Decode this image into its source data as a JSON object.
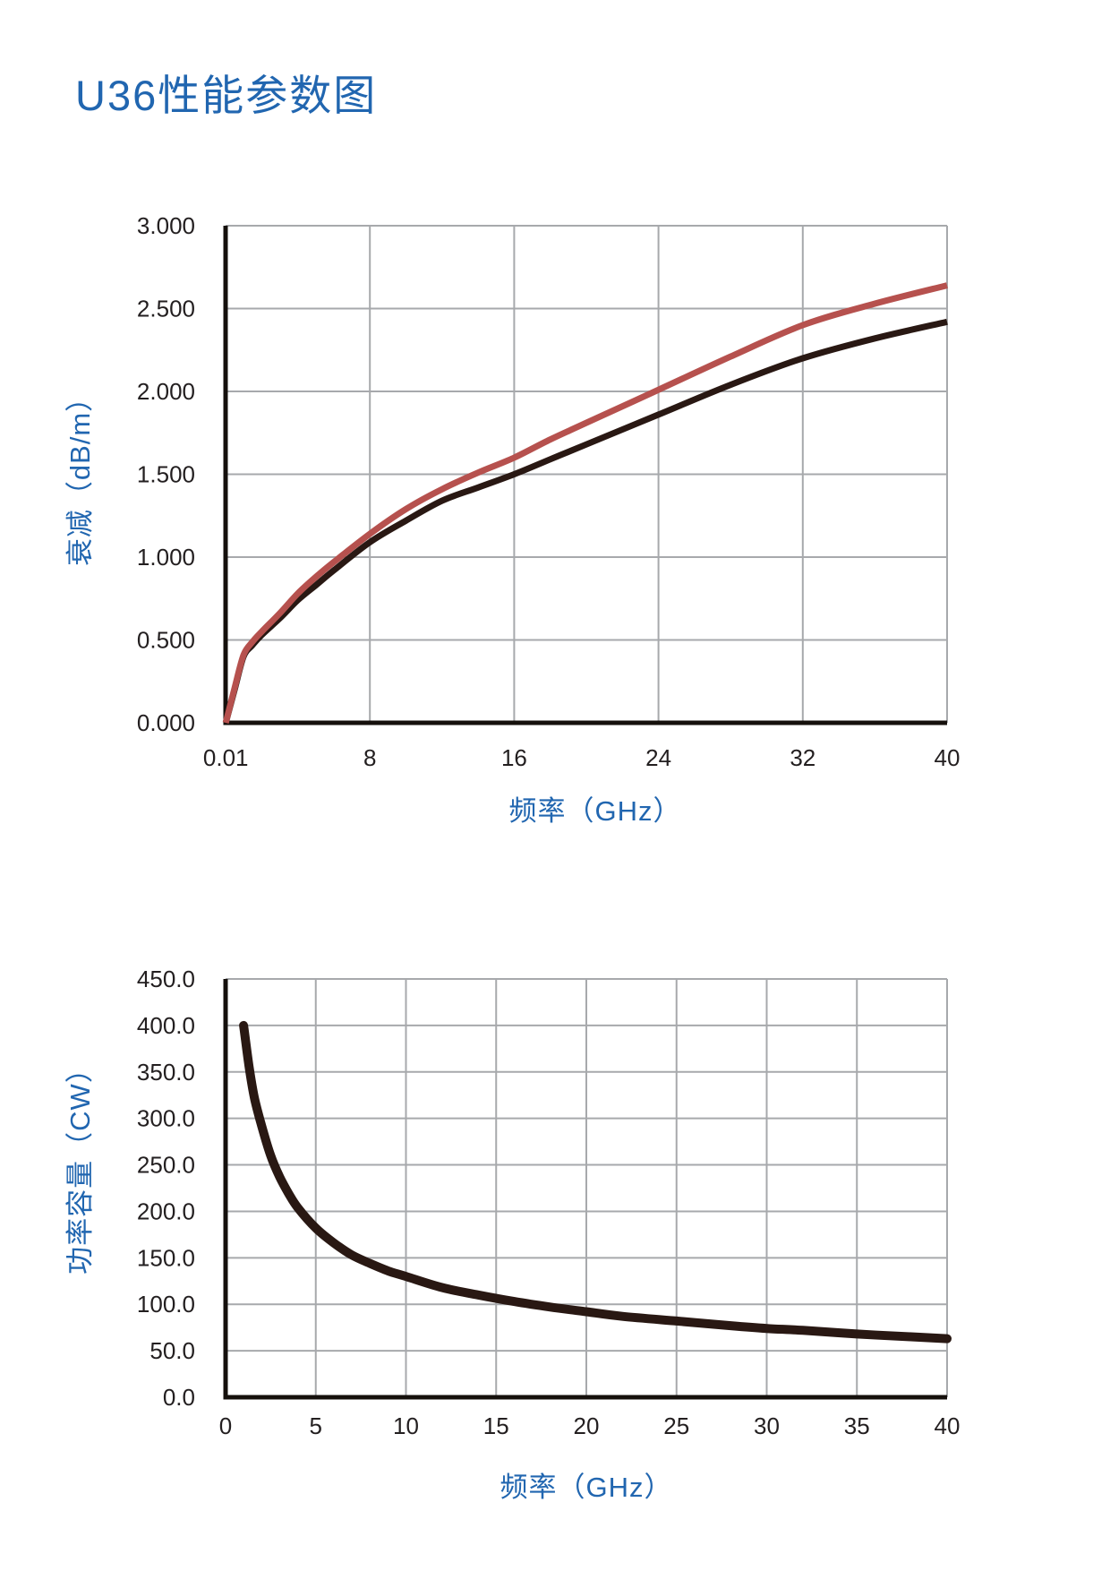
{
  "page": {
    "title": "U36性能参数图",
    "accent_blue": "#2166b0",
    "tick_color": "#231f20",
    "grid_color": "#a7a9ac",
    "axis_color": "#15100c"
  },
  "chart_data": [
    {
      "type": "line",
      "title": "",
      "xlabel": "频率（GHz）",
      "ylabel": "衰减（dB/m）",
      "xlim": [
        0,
        40
      ],
      "ylim": [
        0,
        3
      ],
      "grid": true,
      "legend": "none",
      "x_ticks": {
        "values": [
          0.01,
          8,
          16,
          24,
          32,
          40
        ],
        "labels": [
          "0.01",
          "8",
          "16",
          "24",
          "32",
          "40"
        ]
      },
      "y_ticks": {
        "values": [
          0,
          0.5,
          1,
          1.5,
          2,
          2.5,
          3
        ],
        "labels": [
          "0.000",
          "0.500",
          "1.000",
          "1.500",
          "2.000",
          "2.500",
          "3.000"
        ]
      },
      "series": [
        {
          "name": "attenuation-black-curve",
          "color": "#291813",
          "width": 7,
          "linecap": "butt",
          "x": [
            0.01,
            0.5,
            1,
            1.5,
            2,
            3,
            4,
            5,
            6,
            8,
            10,
            12,
            14,
            16,
            18,
            20,
            24,
            28,
            32,
            36,
            40
          ],
          "y": [
            0.0,
            0.2,
            0.4,
            0.47,
            0.53,
            0.63,
            0.74,
            0.83,
            0.92,
            1.09,
            1.22,
            1.34,
            1.42,
            1.5,
            1.59,
            1.68,
            1.86,
            2.04,
            2.2,
            2.32,
            2.42
          ]
        },
        {
          "name": "attenuation-red-curve",
          "color": "#b6514e",
          "width": 7,
          "linecap": "butt",
          "x": [
            0.01,
            0.5,
            1,
            1.5,
            2,
            3,
            4,
            5,
            6,
            8,
            10,
            12,
            14,
            16,
            18,
            20,
            24,
            28,
            32,
            36,
            40
          ],
          "y": [
            0.0,
            0.21,
            0.41,
            0.49,
            0.55,
            0.66,
            0.78,
            0.88,
            0.97,
            1.14,
            1.29,
            1.41,
            1.51,
            1.6,
            1.71,
            1.81,
            2.01,
            2.21,
            2.4,
            2.53,
            2.64
          ]
        }
      ]
    },
    {
      "type": "line",
      "title": "",
      "xlabel": "频率（GHz）",
      "ylabel": "功率容量（CW）",
      "xlim": [
        0,
        40
      ],
      "ylim": [
        0,
        450
      ],
      "grid": true,
      "legend": "none",
      "x_ticks": {
        "values": [
          0,
          5,
          10,
          15,
          20,
          25,
          30,
          35,
          40
        ],
        "labels": [
          "0",
          "5",
          "10",
          "15",
          "20",
          "25",
          "30",
          "35",
          "40"
        ]
      },
      "y_ticks": {
        "values": [
          0,
          50,
          100,
          150,
          200,
          250,
          300,
          350,
          400,
          450
        ],
        "labels": [
          "0.0",
          "50.0",
          "100.0",
          "150.0",
          "200.0",
          "250.0",
          "300.0",
          "350.0",
          "400.0",
          "450.0"
        ]
      },
      "series": [
        {
          "name": "power-capacity-curve",
          "color": "#291813",
          "width": 10,
          "linecap": "round",
          "x": [
            1,
            1.3,
            1.6,
            2,
            2.5,
            3,
            3.5,
            4,
            5,
            6,
            7,
            8,
            9,
            10,
            12,
            14,
            16,
            18,
            20,
            22,
            25,
            28,
            30,
            32,
            35,
            38,
            40
          ],
          "y": [
            400,
            356,
            322,
            292,
            260,
            237,
            219,
            204,
            182,
            166,
            153,
            144,
            136,
            130,
            118,
            110,
            103,
            97,
            92,
            87,
            82,
            77,
            74,
            72,
            68,
            65,
            63
          ]
        }
      ]
    }
  ]
}
